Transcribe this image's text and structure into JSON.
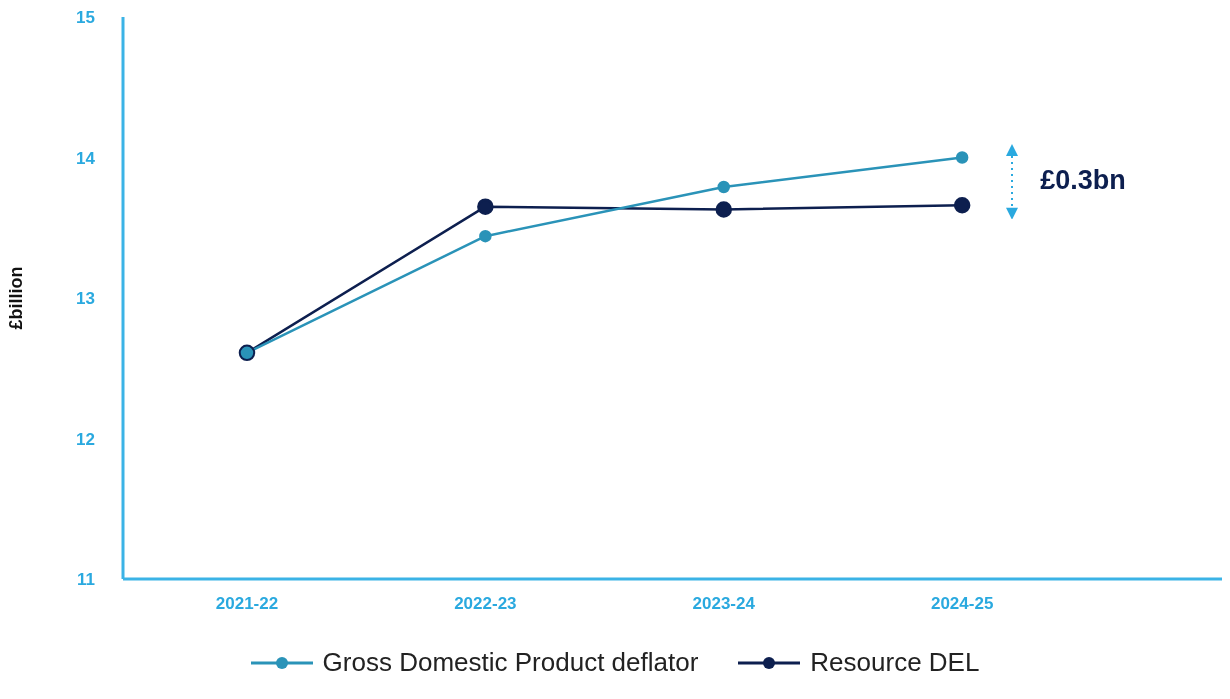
{
  "chart_data": {
    "type": "line",
    "ylabel": "£billion",
    "categories": [
      "2021-22",
      "2022-23",
      "2023-24",
      "2024-25"
    ],
    "series": [
      {
        "name": "Gross Domestic Product deflator",
        "color": "#2a93b8",
        "values": [
          12.61,
          13.44,
          13.79,
          14.0
        ]
      },
      {
        "name": "Resource DEL",
        "color": "#0d1f4f",
        "values": [
          12.61,
          13.65,
          13.63,
          13.66
        ]
      }
    ],
    "ylim": [
      11,
      15
    ],
    "yticks": [
      11,
      12,
      13,
      14,
      15
    ],
    "grid": false,
    "legend": "bottom",
    "marker": "circle",
    "line_style": "solid",
    "annotations": [
      "£0.3bn"
    ]
  }
}
